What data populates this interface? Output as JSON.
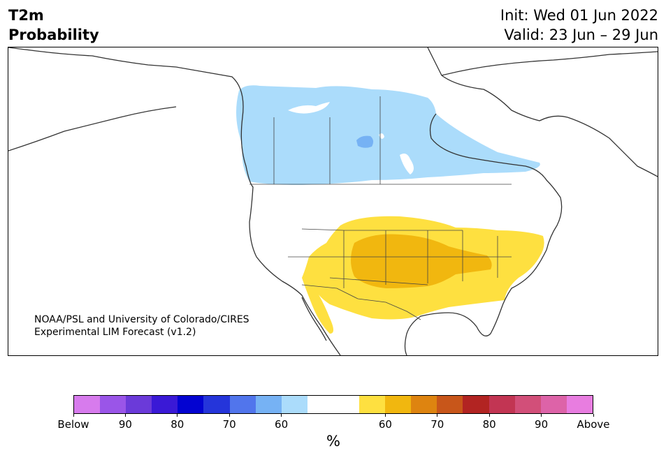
{
  "header": {
    "variable": "T2m",
    "product": "Probability",
    "init": "Init: Wed 01 Jun 2022",
    "valid": "Valid: 23 Jun – 29 Jun"
  },
  "credit": {
    "line1": "NOAA/PSL and University of Colorado/CIRES",
    "line2": "Experimental LIM Forecast (v1.2)"
  },
  "map": {
    "region": "North America",
    "shaded_areas": [
      {
        "category": "below-normal",
        "level": "60",
        "area": "central & eastern Canada",
        "color": "#abdcfb"
      },
      {
        "category": "below-normal",
        "level": "70",
        "area": "southern Saskatchewan / Manitoba",
        "color": "#76b2f4"
      },
      {
        "category": "above-normal",
        "level": "60",
        "area": "southern & eastern United States, northern Mexico",
        "color": "#fee040"
      },
      {
        "category": "above-normal",
        "level": "70",
        "area": "central & southern Plains",
        "color": "#f1b70f"
      }
    ]
  },
  "colorbar": {
    "unit": "%",
    "colors": [
      "#d77bed",
      "#9a55e8",
      "#6b3ad9",
      "#3a19d6",
      "#0303d1",
      "#2535da",
      "#5175ec",
      "#76b2f4",
      "#abdcfb",
      "#ffffff",
      "#ffffff",
      "#fee040",
      "#f1b70f",
      "#de8410",
      "#c8561a",
      "#b22422",
      "#c23553",
      "#d24f79",
      "#dd63a8",
      "#e87de0"
    ],
    "ticks": [
      "Below",
      "90",
      "80",
      "70",
      "60",
      "60",
      "70",
      "80",
      "90",
      "Above"
    ]
  }
}
